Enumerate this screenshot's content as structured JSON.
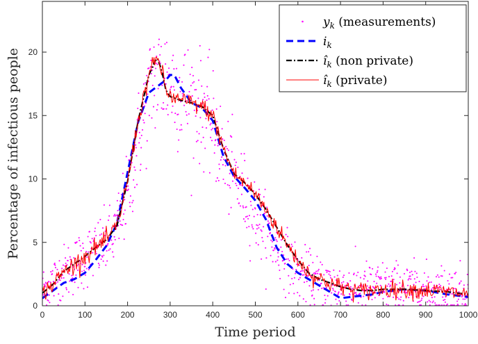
{
  "chart_data": {
    "type": "line",
    "title": "",
    "xlabel": "Time period",
    "ylabel": "Percentage of infectious people",
    "xlim": [
      0,
      1000
    ],
    "ylim": [
      0,
      24
    ],
    "xticks": [
      0,
      100,
      200,
      300,
      400,
      500,
      600,
      700,
      800,
      900,
      1000
    ],
    "yticks": [
      0,
      5,
      10,
      15,
      20
    ],
    "grid": false,
    "legend_position": "top-right",
    "series": [
      {
        "name": "y_k (measurements)",
        "legend_main": "y",
        "legend_sub": "k",
        "legend_rest": " (measurements)",
        "style": "dots",
        "color": "#ff00ff",
        "curve_x": [
          0,
          50,
          100,
          150,
          170,
          200,
          230,
          260,
          290,
          310,
          330,
          350,
          380,
          400,
          430,
          460,
          500,
          550,
          600,
          650,
          700,
          750,
          800,
          900,
          1000
        ],
        "curve_y": [
          1.2,
          2.6,
          3.8,
          4.9,
          5.6,
          8.7,
          13.8,
          17.9,
          18.1,
          17.3,
          16.6,
          16.3,
          15.4,
          14.1,
          11.2,
          9.6,
          7.2,
          4.6,
          2.6,
          1.8,
          1.5,
          1.4,
          1.5,
          1.3,
          1.2
        ],
        "noise_sd": 1.6
      },
      {
        "name": "i_k",
        "legend_main": "i",
        "legend_sub": "k",
        "legend_rest": "",
        "style": "dashed",
        "color": "#0000ff",
        "x": [
          0,
          25,
          50,
          75,
          100,
          125,
          150,
          175,
          200,
          225,
          250,
          270,
          290,
          300,
          310,
          325,
          350,
          375,
          400,
          425,
          450,
          475,
          500,
          525,
          550,
          575,
          600,
          625,
          650,
          675,
          700,
          725,
          750,
          775,
          800,
          850,
          900,
          950,
          1000
        ],
        "y": [
          0.6,
          1.2,
          1.8,
          2.1,
          2.6,
          3.6,
          4.7,
          6.5,
          10.5,
          14.5,
          16.8,
          17.3,
          17.8,
          18.2,
          18.2,
          17.2,
          16.0,
          15.6,
          14.6,
          11.8,
          10.2,
          9.3,
          8.3,
          6.8,
          4.6,
          3.3,
          2.6,
          2.1,
          1.6,
          1.1,
          0.6,
          0.7,
          0.8,
          0.9,
          1.1,
          1.3,
          1.2,
          0.9,
          0.7
        ]
      },
      {
        "name": "î_k (non private)",
        "legend_main": "î",
        "legend_sub": "k",
        "legend_rest": " (non private)",
        "style": "dashdot",
        "color": "#000000",
        "x": [
          0,
          25,
          50,
          75,
          100,
          125,
          150,
          175,
          200,
          225,
          250,
          265,
          270,
          280,
          290,
          300,
          325,
          350,
          375,
          400,
          425,
          450,
          475,
          500,
          525,
          550,
          575,
          600,
          625,
          650,
          675,
          700,
          725,
          750,
          775,
          800,
          850,
          900,
          950,
          1000
        ],
        "y": [
          1.0,
          1.7,
          2.7,
          3.3,
          3.9,
          4.6,
          5.2,
          6.3,
          9.8,
          14.6,
          18.2,
          19.3,
          19.5,
          18.6,
          17.0,
          16.5,
          16.2,
          16.0,
          15.7,
          15.0,
          12.4,
          10.4,
          9.7,
          8.8,
          7.6,
          6.2,
          4.8,
          3.6,
          2.6,
          2.1,
          1.8,
          1.5,
          1.3,
          1.2,
          1.2,
          1.3,
          1.3,
          1.2,
          1.1,
          0.9
        ]
      },
      {
        "name": "î_k (private)",
        "legend_main": "î",
        "legend_sub": "k",
        "legend_rest": " (private)",
        "style": "solid",
        "color": "#ff0000",
        "noise_sd": 0.35,
        "x": [
          0,
          25,
          50,
          75,
          100,
          125,
          150,
          175,
          200,
          225,
          250,
          265,
          270,
          280,
          290,
          300,
          325,
          350,
          375,
          400,
          425,
          450,
          475,
          500,
          525,
          550,
          575,
          600,
          625,
          650,
          675,
          700,
          725,
          750,
          775,
          800,
          850,
          900,
          950,
          1000
        ],
        "y": [
          1.0,
          1.7,
          2.7,
          3.3,
          3.9,
          4.6,
          5.2,
          6.3,
          9.8,
          14.6,
          18.2,
          19.3,
          19.5,
          18.6,
          17.0,
          16.5,
          16.2,
          16.0,
          15.7,
          15.0,
          12.4,
          10.4,
          9.7,
          8.8,
          7.6,
          6.2,
          4.8,
          3.6,
          2.6,
          2.1,
          1.8,
          1.5,
          1.3,
          1.2,
          1.2,
          1.3,
          1.3,
          1.2,
          1.1,
          0.9
        ]
      }
    ]
  }
}
